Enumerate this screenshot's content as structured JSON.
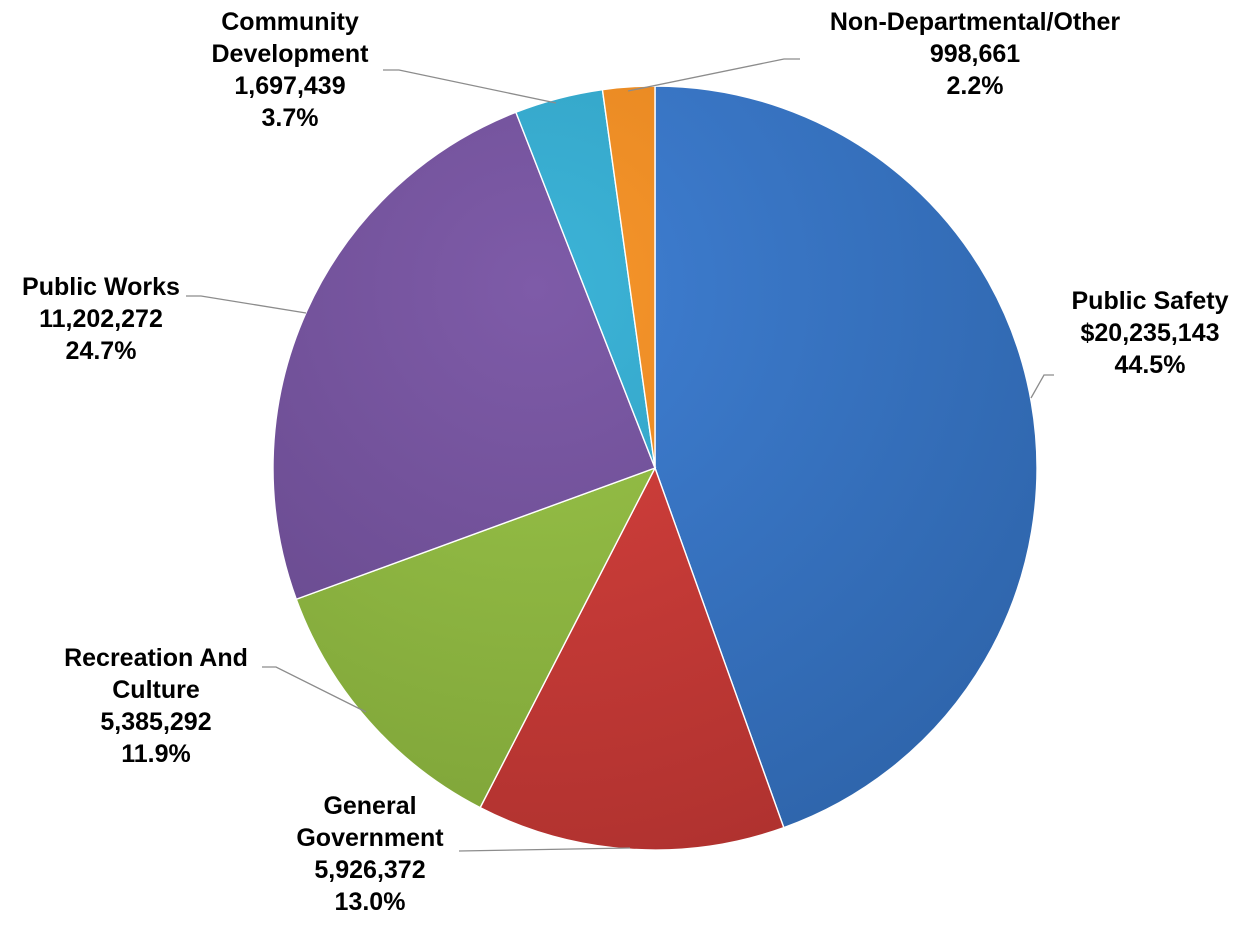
{
  "chart_data": {
    "type": "pie",
    "title": "",
    "start_angle_deg": 0,
    "direction": "clockwise",
    "slices": [
      {
        "label_lines": [
          "Public Safety"
        ],
        "value_text": "$20,235,143",
        "value": 20235143,
        "percent_text": "44.5%",
        "percent": 44.5,
        "color": "#3f7fd3",
        "color_dark": "#2f66ad"
      },
      {
        "label_lines": [
          "General",
          "Government"
        ],
        "value_text": "5,926,372",
        "value": 5926372,
        "percent_text": "13.0%",
        "percent": 13.0,
        "color": "#d9423e",
        "color_dark": "#b0322f"
      },
      {
        "label_lines": [
          "Recreation And",
          "Culture"
        ],
        "value_text": "5,385,292",
        "value": 5385292,
        "percent_text": "11.9%",
        "percent": 11.9,
        "color": "#9bc64a",
        "color_dark": "#7ea338"
      },
      {
        "label_lines": [
          "Public Works"
        ],
        "value_text": "11,202,272",
        "value": 11202272,
        "percent_text": "24.7%",
        "percent": 24.7,
        "color": "#7e5ba8",
        "color_dark": "#634688"
      },
      {
        "label_lines": [
          "Community",
          "Development"
        ],
        "value_text": "1,697,439",
        "value": 1697439,
        "percent_text": "3.7%",
        "percent": 3.7,
        "color": "#3cb4d8",
        "color_dark": "#2b93b4"
      },
      {
        "label_lines": [
          "Non-Departmental/Other"
        ],
        "value_text": "998,661",
        "value": 998661,
        "percent_text": "2.2%",
        "percent": 2.2,
        "color": "#f7962c",
        "color_dark": "#d77a17"
      }
    ]
  }
}
